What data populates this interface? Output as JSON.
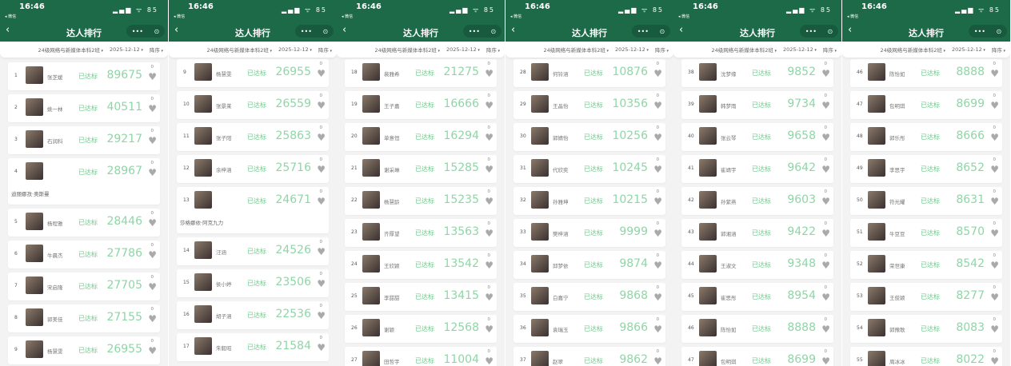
{
  "header": {
    "time": "16:46",
    "back_app": "◂ 微信",
    "signal": "▂▄▆ ᯤ 85",
    "title": "达人排行",
    "back_icon": "‹",
    "more": "•••",
    "close": "⊙"
  },
  "filters": {
    "class": "24级网络与新媒体本科2班",
    "date": "2025-12-12",
    "order": "降序"
  },
  "colors": {
    "brand": "#1d6a48",
    "status": "#6cc98a",
    "score": "#8fd6a6"
  },
  "status_label": "已达标",
  "heart_icon": "♥",
  "panels": [
    {
      "items": [
        {
          "rank": "1",
          "name": "张芝媛",
          "score": "89675",
          "likes": "0"
        },
        {
          "rank": "2",
          "name": "姚一林",
          "score": "40511",
          "likes": "0"
        },
        {
          "rank": "3",
          "name": "石润科",
          "score": "29217",
          "likes": "0"
        },
        {
          "rank": "4",
          "name": "",
          "full_name": "迪丽娜孜·奥斯曼",
          "score": "28967",
          "likes": "0"
        },
        {
          "rank": "5",
          "name": "杨程雅",
          "score": "28446",
          "likes": "0"
        },
        {
          "rank": "6",
          "name": "牛晨杰",
          "score": "27786",
          "likes": "0"
        },
        {
          "rank": "7",
          "name": "宋启隆",
          "score": "27705",
          "likes": "0"
        },
        {
          "rank": "8",
          "name": "郭美佳",
          "score": "27155",
          "likes": "0"
        },
        {
          "rank": "9",
          "name": "杨慧雯",
          "score": "26955",
          "likes": "0"
        }
      ]
    },
    {
      "items": [
        {
          "rank": "9",
          "name": "杨慧雯",
          "score": "26955",
          "likes": "0"
        },
        {
          "rank": "10",
          "name": "张景莱",
          "score": "26559",
          "likes": "0"
        },
        {
          "rank": "11",
          "name": "张子阳",
          "score": "25863",
          "likes": "0"
        },
        {
          "rank": "12",
          "name": "余梓涵",
          "score": "25716",
          "likes": "0"
        },
        {
          "rank": "13",
          "name": "",
          "full_name": "莎格娜依·阿克九力",
          "score": "24671",
          "likes": "0"
        },
        {
          "rank": "14",
          "name": "汪涵",
          "score": "24526",
          "likes": "0"
        },
        {
          "rank": "15",
          "name": "侯小婷",
          "score": "23506",
          "likes": "0"
        },
        {
          "rank": "16",
          "name": "胡子涵",
          "score": "22536",
          "likes": "0"
        },
        {
          "rank": "17",
          "name": "朱毅昭",
          "score": "21584",
          "likes": "0"
        }
      ]
    },
    {
      "items": [
        {
          "rank": "18",
          "name": "裴雅希",
          "score": "21275",
          "likes": "0"
        },
        {
          "rank": "19",
          "name": "王子嘉",
          "score": "16666",
          "likes": "0"
        },
        {
          "rank": "20",
          "name": "单意恒",
          "score": "16294",
          "likes": "0"
        },
        {
          "rank": "21",
          "name": "谢采琳",
          "score": "15285",
          "likes": "0"
        },
        {
          "rank": "22",
          "name": "杨慧龄",
          "score": "15235",
          "likes": "0"
        },
        {
          "rank": "23",
          "name": "齐厚望",
          "score": "13563",
          "likes": "0"
        },
        {
          "rank": "24",
          "name": "王欣颖",
          "score": "13542",
          "likes": "0"
        },
        {
          "rank": "25",
          "name": "李甜甜",
          "score": "13415",
          "likes": "0"
        },
        {
          "rank": "26",
          "name": "谢颖",
          "score": "12568",
          "likes": "0"
        },
        {
          "rank": "27",
          "name": "田哲宇",
          "score": "11004",
          "likes": "0"
        }
      ]
    },
    {
      "items": [
        {
          "rank": "28",
          "name": "何铃涵",
          "score": "10876",
          "likes": "0"
        },
        {
          "rank": "29",
          "name": "王晶怡",
          "score": "10356",
          "likes": "0"
        },
        {
          "rank": "30",
          "name": "郭婧怡",
          "score": "10256",
          "likes": "0"
        },
        {
          "rank": "31",
          "name": "代欣奕",
          "score": "10245",
          "likes": "0"
        },
        {
          "rank": "32",
          "name": "孙雅坤",
          "score": "10215",
          "likes": "0"
        },
        {
          "rank": "33",
          "name": "樊梓涵",
          "score": "9999",
          "likes": "0"
        },
        {
          "rank": "34",
          "name": "邱梦依",
          "score": "9874",
          "likes": "0"
        },
        {
          "rank": "35",
          "name": "白嘉宁",
          "score": "9868",
          "likes": "0"
        },
        {
          "rank": "36",
          "name": "袁瑞玉",
          "score": "9866",
          "likes": "0"
        },
        {
          "rank": "37",
          "name": "赵翠",
          "score": "9862",
          "likes": "0"
        }
      ]
    },
    {
      "items": [
        {
          "rank": "38",
          "name": "沈梦缘",
          "score": "9852",
          "likes": "0"
        },
        {
          "rank": "39",
          "name": "韩梦雨",
          "score": "9734",
          "likes": "0"
        },
        {
          "rank": "40",
          "name": "张云琴",
          "score": "9658",
          "likes": "0"
        },
        {
          "rank": "41",
          "name": "崔靖宇",
          "score": "9642",
          "likes": "0"
        },
        {
          "rank": "42",
          "name": "孙紫燕",
          "score": "9603",
          "likes": "0"
        },
        {
          "rank": "43",
          "name": "郭湘涵",
          "score": "9422",
          "likes": "0"
        },
        {
          "rank": "44",
          "name": "王淑文",
          "score": "9348",
          "likes": "0"
        },
        {
          "rank": "45",
          "name": "崔思彤",
          "score": "8954",
          "likes": "0"
        },
        {
          "rank": "46",
          "name": "陈怡如",
          "score": "8888",
          "likes": "0"
        },
        {
          "rank": "47",
          "name": "包明琪",
          "score": "8699",
          "likes": "0"
        }
      ]
    },
    {
      "items": [
        {
          "rank": "46",
          "name": "陈怡如",
          "score": "8888",
          "likes": "0"
        },
        {
          "rank": "47",
          "name": "包明琪",
          "score": "8699",
          "likes": "0"
        },
        {
          "rank": "48",
          "name": "郭乐彤",
          "score": "8666",
          "likes": "0"
        },
        {
          "rank": "49",
          "name": "李思宇",
          "score": "8652",
          "likes": "0"
        },
        {
          "rank": "50",
          "name": "符光耀",
          "score": "8631",
          "likes": "0"
        },
        {
          "rank": "51",
          "name": "牛豆豆",
          "score": "8570",
          "likes": "0"
        },
        {
          "rank": "52",
          "name": "荣世康",
          "score": "8542",
          "likes": "0"
        },
        {
          "rank": "53",
          "name": "王俊颖",
          "score": "8277",
          "likes": "0"
        },
        {
          "rank": "54",
          "name": "郭豫歌",
          "score": "8083",
          "likes": "0"
        },
        {
          "rank": "55",
          "name": "周冰冰",
          "score": "8022",
          "likes": "0"
        }
      ]
    }
  ]
}
